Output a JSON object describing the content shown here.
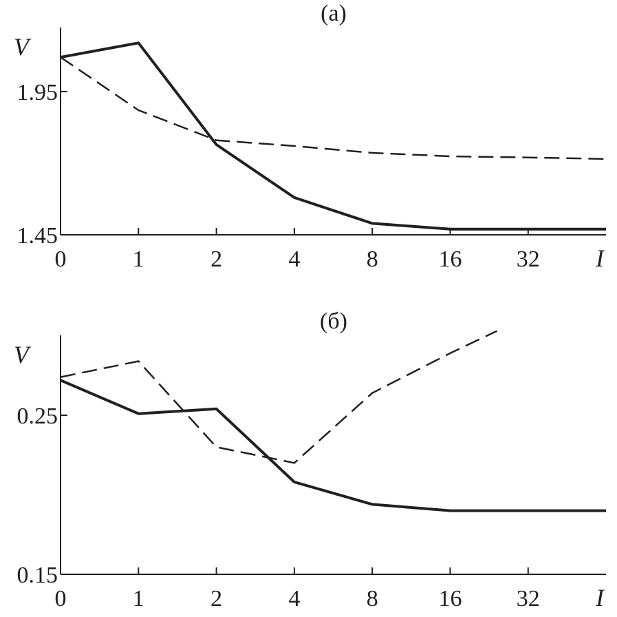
{
  "chart_data": [
    {
      "type": "line",
      "title": "(a)",
      "ylabel": "V",
      "xlabel": "I",
      "categories": [
        "0",
        "1",
        "2",
        "4",
        "8",
        "16",
        "32",
        ""
      ],
      "yticks": [
        "1.95",
        "1.45"
      ],
      "ylim": [
        1.45,
        2.2
      ],
      "grid": false,
      "series": [
        {
          "style": "solid",
          "values": [
            2.07,
            2.12,
            1.765,
            1.58,
            1.49,
            1.47,
            1.47,
            1.47
          ]
        },
        {
          "style": "dashed",
          "values": [
            2.07,
            1.885,
            1.78,
            1.76,
            1.736,
            1.724,
            1.72,
            1.715
          ]
        }
      ]
    },
    {
      "type": "line",
      "title": "(б)",
      "ylabel": "V",
      "xlabel": "I",
      "categories": [
        "0",
        "1",
        "2",
        "4",
        "8",
        "16",
        "32",
        ""
      ],
      "yticks": [
        "0.25",
        "0.15"
      ],
      "ylim": [
        0.15,
        0.303
      ],
      "grid": false,
      "series": [
        {
          "style": "solid",
          "values": [
            0.272,
            0.251,
            0.254,
            0.208,
            0.194,
            0.19,
            0.19,
            0.19
          ]
        },
        {
          "style": "dashed",
          "points": [
            [
              0,
              0.274
            ],
            [
              1,
              0.284
            ],
            [
              2,
              0.23
            ],
            [
              3,
              0.22
            ],
            [
              4,
              0.264
            ],
            [
              5,
              0.289
            ],
            [
              5.6,
              0.303
            ]
          ]
        }
      ]
    }
  ]
}
